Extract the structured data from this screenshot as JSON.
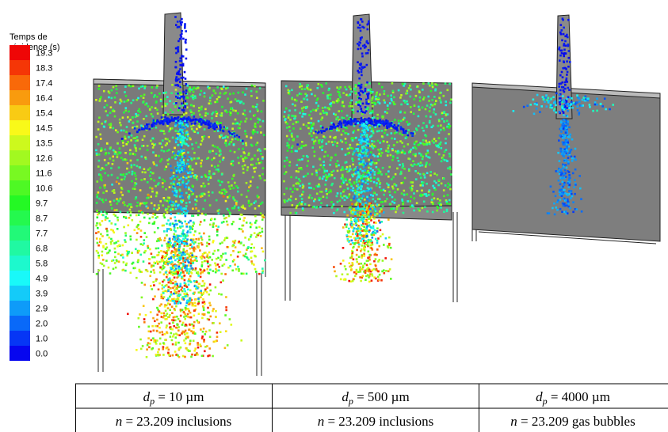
{
  "legend": {
    "title": [
      "Temps de",
      "résidence (s)"
    ],
    "labels": [
      "19.3",
      "18.3",
      "17.4",
      "16.4",
      "15.4",
      "14.5",
      "13.5",
      "12.6",
      "11.6",
      "10.6",
      "9.7",
      "8.7",
      "7.7",
      "6.8",
      "5.8",
      "4.9",
      "3.9",
      "2.9",
      "2.0",
      "1.0",
      "0.0"
    ]
  },
  "table": {
    "rows": [
      [
        {
          "var": "d",
          "sub": "p",
          "text": " = 10 µm"
        },
        {
          "var": "d",
          "sub": "p",
          "text": " = 500 µm"
        },
        {
          "var": "d",
          "sub": "p",
          "text": " = 4000 µm"
        }
      ],
      [
        {
          "var": "n",
          "text": " = 23.209 inclusions"
        },
        {
          "var": "n",
          "text": " = 23.209 inclusions"
        },
        {
          "var": "n",
          "text": " = 23.209 gas bubbles"
        }
      ]
    ]
  }
}
